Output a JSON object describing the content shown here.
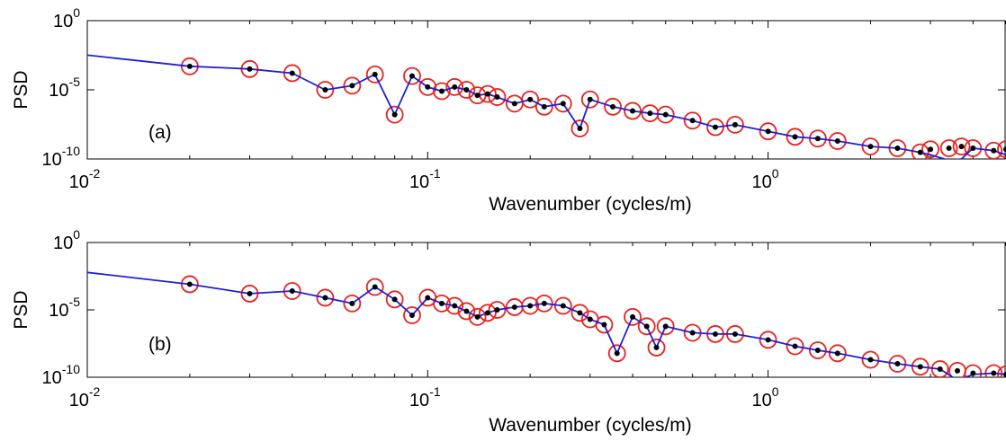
{
  "chart_data": [
    {
      "type": "line",
      "panel_label": "(a)",
      "xlabel": "Wavenumber (cycles/m)",
      "ylabel": "PSD",
      "xscale": "log",
      "yscale": "log",
      "xlim": [
        0.01,
        5
      ],
      "ylim": [
        1e-10,
        1
      ],
      "x_ticks": [
        {
          "value": 0.01,
          "base": "10",
          "exp": "-2"
        },
        {
          "value": 0.1,
          "base": "10",
          "exp": "-1"
        },
        {
          "value": 1,
          "base": "10",
          "exp": "0"
        }
      ],
      "y_ticks": [
        {
          "value": 1e-10,
          "base": "10",
          "exp": "-10"
        },
        {
          "value": 1e-05,
          "base": "10",
          "exp": "-5"
        },
        {
          "value": 1,
          "base": "10",
          "exp": "0"
        }
      ],
      "grid": false,
      "colors": {
        "line": "#1f1fd8",
        "circle": "#e8231f",
        "dot": "#000000"
      },
      "series": [
        {
          "x": [
            0.01,
            0.02,
            0.03,
            0.04,
            0.05,
            0.06,
            0.07,
            0.08,
            0.09,
            0.1,
            0.11,
            0.12,
            0.13,
            0.14,
            0.15,
            0.16,
            0.18,
            0.2,
            0.22,
            0.25,
            0.28,
            0.3,
            0.35,
            0.4,
            0.45,
            0.5,
            0.6,
            0.7,
            0.8,
            1.0,
            1.2,
            1.4,
            1.6,
            2.0,
            2.4,
            2.8,
            3.0,
            3.4,
            3.7,
            4.0,
            4.6,
            5.0
          ],
          "y": [
            0.0032,
            0.0005,
            0.00032,
            0.00016,
            1e-05,
            2e-05,
            0.00013,
            1.6e-07,
            0.0001,
            1.6e-05,
            8e-06,
            1.6e-05,
            1e-05,
            4e-06,
            5e-06,
            3e-06,
            1e-06,
            2e-06,
            6e-07,
            1e-06,
            1.6e-08,
            2e-06,
            6e-07,
            3e-07,
            2e-07,
            1.6e-07,
            6e-08,
            2e-08,
            3e-08,
            1e-08,
            4e-09,
            3e-09,
            2e-09,
            8e-10,
            6e-10,
            3e-10,
            2e-10,
            8e-11,
            1e-10,
            6e-10,
            4e-10,
            2e-10
          ]
        }
      ],
      "markers": {
        "x": [
          0.02,
          0.03,
          0.04,
          0.05,
          0.06,
          0.07,
          0.08,
          0.09,
          0.1,
          0.11,
          0.12,
          0.13,
          0.14,
          0.15,
          0.16,
          0.18,
          0.2,
          0.22,
          0.25,
          0.28,
          0.3,
          0.35,
          0.4,
          0.45,
          0.5,
          0.6,
          0.7,
          0.8,
          1.0,
          1.2,
          1.4,
          1.6,
          2.0,
          2.4,
          2.8,
          3.0,
          3.4,
          3.7,
          4.0,
          4.6,
          5.0
        ],
        "y": [
          0.0005,
          0.00032,
          0.00016,
          1e-05,
          2e-05,
          0.00013,
          1.6e-07,
          0.0001,
          1.6e-05,
          8e-06,
          1.6e-05,
          1e-05,
          4e-06,
          5e-06,
          3e-06,
          1e-06,
          2e-06,
          6e-07,
          1e-06,
          1.6e-08,
          2e-06,
          6e-07,
          3e-07,
          2e-07,
          1.6e-07,
          6e-08,
          2e-08,
          3e-08,
          1e-08,
          4e-09,
          3e-09,
          2e-09,
          8e-10,
          6e-10,
          3e-10,
          5e-10,
          6e-10,
          8e-10,
          6e-10,
          4e-10,
          5e-10
        ]
      }
    },
    {
      "type": "line",
      "panel_label": "(b)",
      "xlabel": "Wavenumber (cycles/m)",
      "ylabel": "PSD",
      "xscale": "log",
      "yscale": "log",
      "xlim": [
        0.01,
        5
      ],
      "ylim": [
        1e-10,
        1
      ],
      "x_ticks": [
        {
          "value": 0.01,
          "base": "10",
          "exp": "-2"
        },
        {
          "value": 0.1,
          "base": "10",
          "exp": "-1"
        },
        {
          "value": 1,
          "base": "10",
          "exp": "0"
        }
      ],
      "y_ticks": [
        {
          "value": 1e-10,
          "base": "10",
          "exp": "-10"
        },
        {
          "value": 1e-05,
          "base": "10",
          "exp": "-5"
        },
        {
          "value": 1,
          "base": "10",
          "exp": "0"
        }
      ],
      "grid": false,
      "colors": {
        "line": "#1f1fd8",
        "circle": "#e8231f",
        "dot": "#000000"
      },
      "series": [
        {
          "x": [
            0.01,
            0.02,
            0.03,
            0.04,
            0.05,
            0.06,
            0.07,
            0.08,
            0.09,
            0.1,
            0.11,
            0.12,
            0.13,
            0.14,
            0.15,
            0.16,
            0.18,
            0.2,
            0.22,
            0.25,
            0.28,
            0.3,
            0.33,
            0.36,
            0.4,
            0.44,
            0.47,
            0.5,
            0.6,
            0.7,
            0.8,
            1.0,
            1.2,
            1.4,
            1.6,
            2.0,
            2.4,
            2.8,
            3.2,
            3.6,
            4.0,
            4.6,
            5.0
          ],
          "y": [
            0.006,
            0.0008,
            0.00016,
            0.00025,
            8e-05,
            3e-05,
            0.0005,
            6e-05,
            4e-06,
            8e-05,
            3e-05,
            2e-05,
            8e-06,
            3e-06,
            6e-06,
            1e-05,
            1.6e-05,
            2e-05,
            3e-05,
            2e-05,
            6e-06,
            2e-06,
            8e-07,
            6e-09,
            3e-06,
            6e-07,
            1.6e-08,
            6e-07,
            2e-07,
            1.6e-07,
            1.6e-07,
            6e-08,
            2e-08,
            1e-08,
            6e-09,
            2e-09,
            1e-09,
            6e-10,
            4e-10,
            6e-11,
            1.6e-10,
            2e-10,
            1.6e-10
          ]
        }
      ],
      "markers": {
        "x": [
          0.02,
          0.03,
          0.04,
          0.05,
          0.06,
          0.07,
          0.08,
          0.09,
          0.1,
          0.11,
          0.12,
          0.13,
          0.14,
          0.15,
          0.16,
          0.18,
          0.2,
          0.22,
          0.25,
          0.28,
          0.3,
          0.33,
          0.36,
          0.4,
          0.44,
          0.47,
          0.5,
          0.6,
          0.7,
          0.8,
          1.0,
          1.2,
          1.4,
          1.6,
          2.0,
          2.4,
          2.8,
          3.2,
          3.6,
          4.0,
          4.6,
          5.0
        ],
        "y": [
          0.0008,
          0.00016,
          0.00025,
          8e-05,
          3e-05,
          0.0005,
          6e-05,
          4e-06,
          8e-05,
          3e-05,
          2e-05,
          8e-06,
          3e-06,
          6e-06,
          1e-05,
          1.6e-05,
          2e-05,
          3e-05,
          2e-05,
          6e-06,
          2e-06,
          8e-07,
          6e-09,
          3e-06,
          6e-07,
          1.6e-08,
          6e-07,
          2e-07,
          1.6e-07,
          1.6e-07,
          6e-08,
          2e-08,
          1e-08,
          6e-09,
          2e-09,
          1e-09,
          6e-10,
          4e-10,
          3e-10,
          2e-10,
          2e-10,
          1.6e-10
        ]
      }
    }
  ]
}
